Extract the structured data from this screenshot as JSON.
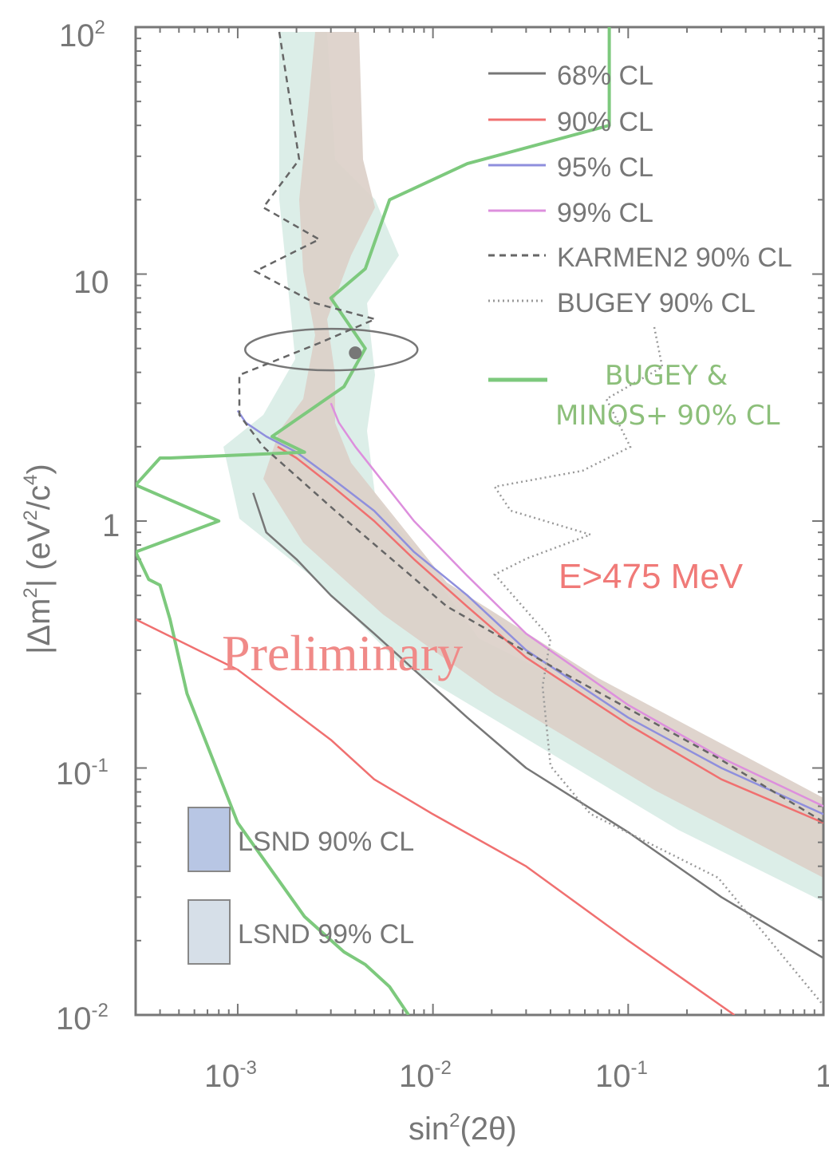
{
  "chart_data": {
    "type": "line",
    "xlabel": "sin²(2θ)",
    "ylabel": "|Δm²| (eV²/c⁴)",
    "x_scale": "log",
    "y_scale": "log",
    "xlim": [
      0.0003,
      1
    ],
    "ylim": [
      0.01,
      100
    ],
    "x_tick_labels": [
      "10-3",
      "10-2",
      "10-1",
      "1"
    ],
    "y_tick_labels": [
      "10-2",
      "10-1",
      "1",
      "10",
      "102"
    ],
    "legend_position": "top-right",
    "annotations": [
      "E>475 MeV",
      "Preliminary"
    ],
    "best_fit": {
      "x": 0.004,
      "y": 4.8
    },
    "legend": [
      {
        "label": "68% CL",
        "color": "#777777",
        "style": "solid"
      },
      {
        "label": "90% CL",
        "color": "#f07070",
        "style": "solid"
      },
      {
        "label": "95% CL",
        "color": "#8f8fdd",
        "style": "solid"
      },
      {
        "label": "99% CL",
        "color": "#dd8fdd",
        "style": "solid"
      },
      {
        "label": "KARMEN2 90% CL",
        "color": "#666666",
        "style": "dashed"
      },
      {
        "label": "BUGEY 90% CL",
        "color": "#999999",
        "style": "dotted"
      },
      {
        "label_lines": [
          "BUGEY &",
          "MINOS+ 90% CL"
        ],
        "color": "#7dc97d",
        "style": "solid"
      }
    ],
    "lsnd_legend": [
      {
        "label": "LSND 90% CL",
        "color": "#b8c6e4"
      },
      {
        "label": "LSND 99% CL",
        "color": "#d6dfe8"
      }
    ],
    "series": [
      {
        "name": "68% CL",
        "color": "#777777",
        "x": [
          0.0012,
          0.0014,
          0.002,
          0.003,
          0.005,
          0.008,
          0.015,
          0.03,
          0.1,
          0.3,
          1.0
        ],
        "y": [
          1.3,
          0.9,
          0.7,
          0.5,
          0.35,
          0.25,
          0.16,
          0.1,
          0.055,
          0.03,
          0.017
        ]
      },
      {
        "name": "90% CL",
        "color": "#f07070",
        "x": [
          0.0016,
          0.002,
          0.003,
          0.005,
          0.008,
          0.015,
          0.03,
          0.1,
          0.3,
          1.0
        ],
        "y": [
          2.0,
          1.8,
          1.4,
          1.0,
          0.7,
          0.45,
          0.28,
          0.15,
          0.09,
          0.06
        ]
      },
      {
        "name": "95% CL",
        "color": "#8f8fdd",
        "x": [
          0.001,
          0.0011,
          0.0014,
          0.002,
          0.003,
          0.005,
          0.008,
          0.015,
          0.03,
          0.1,
          0.3,
          1.0
        ],
        "y": [
          2.8,
          2.5,
          2.2,
          1.9,
          1.5,
          1.1,
          0.75,
          0.5,
          0.3,
          0.16,
          0.1,
          0.065
        ]
      },
      {
        "name": "99% CL",
        "color": "#dd8fdd",
        "x": [
          0.003,
          0.0033,
          0.004,
          0.005,
          0.008,
          0.015,
          0.03,
          0.1,
          0.3,
          1.0
        ],
        "y": [
          3.0,
          2.5,
          2.0,
          1.6,
          1.0,
          0.6,
          0.35,
          0.18,
          0.11,
          0.07
        ]
      },
      {
        "name": "BUGEY & MINOS+ 90% CL",
        "color": "#7dc97d",
        "x": [
          0.0075,
          0.006,
          0.0045,
          0.0035,
          0.0022,
          0.001,
          0.00055,
          0.00045,
          0.0004,
          0.00035,
          0.0003,
          0.0008,
          0.0003,
          0.0004,
          0.00045,
          0.0022,
          0.0015,
          0.0035,
          0.0045,
          0.003,
          0.0045,
          0.006,
          0.015,
          0.08,
          0.08
        ],
        "y": [
          0.01,
          0.013,
          0.016,
          0.018,
          0.025,
          0.06,
          0.2,
          0.4,
          0.55,
          0.58,
          0.75,
          1.0,
          1.4,
          1.8,
          1.8,
          1.9,
          2.2,
          3.5,
          5.0,
          8.0,
          10.5,
          20,
          28,
          40,
          100
        ]
      },
      {
        "name": "E>475 MeV",
        "color": "#f07070",
        "x": [
          0.0003,
          0.001,
          0.003,
          0.005,
          0.01,
          0.03,
          0.1,
          0.35
        ],
        "y": [
          0.4,
          0.25,
          0.13,
          0.09,
          0.065,
          0.04,
          0.02,
          0.01
        ]
      }
    ]
  }
}
